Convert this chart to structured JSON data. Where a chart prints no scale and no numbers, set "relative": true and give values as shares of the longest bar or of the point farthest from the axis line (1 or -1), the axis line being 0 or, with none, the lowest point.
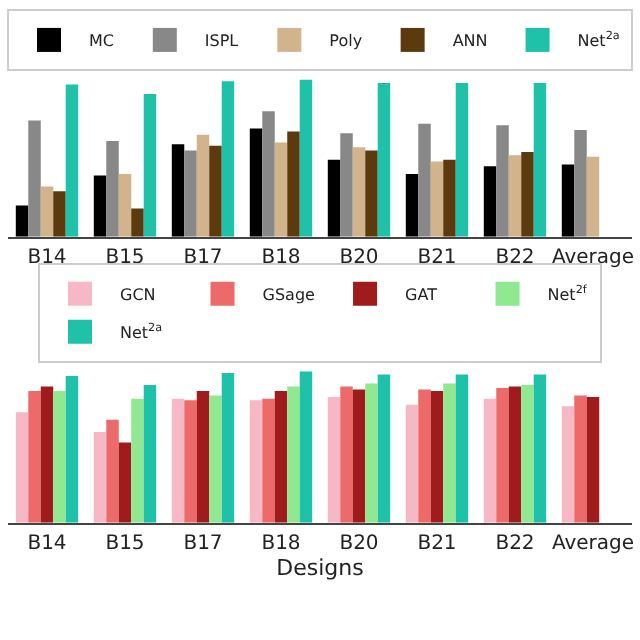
{
  "chart_data": [
    {
      "type": "bar",
      "relative": true,
      "legend": "top",
      "categories": [
        "B14",
        "B15",
        "B17",
        "B18",
        "B20",
        "B21",
        "B22",
        "Average"
      ],
      "series": [
        {
          "name": "MC",
          "color": "#000000",
          "values": [
            0.2,
            0.39,
            0.59,
            0.69,
            0.49,
            0.4,
            0.45,
            0.46
          ]
        },
        {
          "name": "ISPL",
          "color": "#888888",
          "values": [
            0.74,
            0.61,
            0.55,
            0.8,
            0.66,
            0.72,
            0.71,
            0.68
          ]
        },
        {
          "name": "Poly",
          "color": "#d2b48c",
          "values": [
            0.32,
            0.4,
            0.65,
            0.6,
            0.57,
            0.48,
            0.52,
            0.51
          ]
        },
        {
          "name": "ANN",
          "color": "#5c3a0e",
          "values": [
            0.29,
            0.18,
            0.58,
            0.67,
            0.55,
            0.49,
            0.54,
            null
          ]
        },
        {
          "name": "Net$^{2a}$",
          "color": "#1fc2a8",
          "values": [
            0.97,
            0.91,
            0.99,
            1.0,
            0.98,
            0.98,
            0.98,
            null
          ]
        }
      ]
    },
    {
      "type": "bar",
      "relative": true,
      "legend": "top",
      "xlabel": "Designs",
      "categories": [
        "B14",
        "B15",
        "B17",
        "B18",
        "B20",
        "B21",
        "B22",
        "Average"
      ],
      "series": [
        {
          "name": "GCN",
          "color": "#f6b8c4",
          "values": [
            0.73,
            0.6,
            0.82,
            0.81,
            0.83,
            0.78,
            0.82,
            0.77
          ]
        },
        {
          "name": "GSage",
          "color": "#ec6a6a",
          "values": [
            0.87,
            0.68,
            0.81,
            0.82,
            0.9,
            0.88,
            0.89,
            0.84
          ]
        },
        {
          "name": "GAT",
          "color": "#a01c1c",
          "values": [
            0.9,
            0.53,
            0.87,
            0.87,
            0.88,
            0.87,
            0.9,
            0.83
          ]
        },
        {
          "name": "Net$^{2f}$",
          "color": "#90e890",
          "values": [
            0.87,
            0.82,
            0.84,
            0.9,
            0.92,
            0.92,
            0.91,
            null
          ]
        },
        {
          "name": "Net$^{2a}$",
          "color": "#1fc2a8",
          "values": [
            0.97,
            0.91,
            0.99,
            1.0,
            0.98,
            0.98,
            0.98,
            null
          ]
        }
      ]
    }
  ]
}
